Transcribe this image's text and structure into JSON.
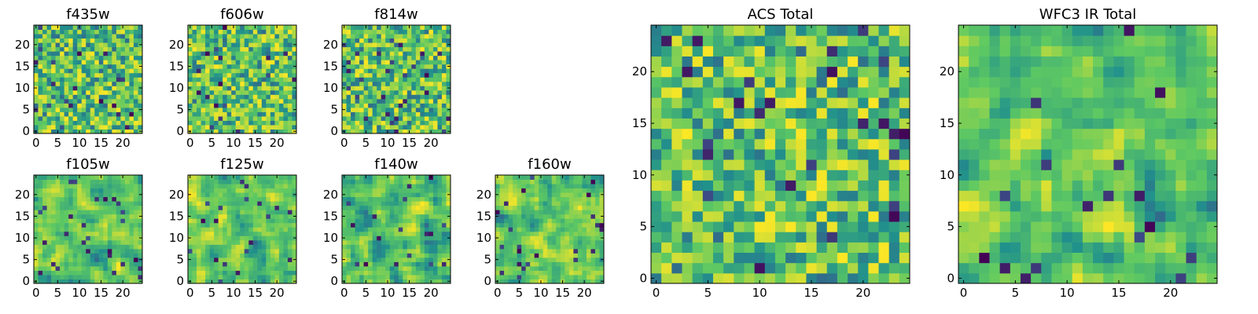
{
  "figure": {
    "background": "#ffffff",
    "colormap": "viridis",
    "colormap_stops": [
      "#440154",
      "#3b528b",
      "#21918c",
      "#5ec962",
      "#fde725"
    ]
  },
  "chart_data": [
    {
      "id": "f435w",
      "type": "heatmap",
      "title": "f435w",
      "grid_size": 25,
      "xticks": [
        0,
        5,
        10,
        15,
        20
      ],
      "yticks": [
        0,
        5,
        10,
        15,
        20
      ],
      "xlim": [
        -0.5,
        24.5
      ],
      "ylim": [
        -0.5,
        24.5
      ],
      "value_range": [
        0,
        1
      ],
      "texture": "noisy"
    },
    {
      "id": "f606w",
      "type": "heatmap",
      "title": "f606w",
      "grid_size": 25,
      "xticks": [
        0,
        5,
        10,
        15,
        20
      ],
      "yticks": [
        0,
        5,
        10,
        15,
        20
      ],
      "xlim": [
        -0.5,
        24.5
      ],
      "ylim": [
        -0.5,
        24.5
      ],
      "value_range": [
        0,
        1
      ],
      "texture": "noisy"
    },
    {
      "id": "f814w",
      "type": "heatmap",
      "title": "f814w",
      "grid_size": 25,
      "xticks": [
        0,
        5,
        10,
        15,
        20
      ],
      "yticks": [
        0,
        5,
        10,
        15,
        20
      ],
      "xlim": [
        -0.5,
        24.5
      ],
      "ylim": [
        -0.5,
        24.5
      ],
      "value_range": [
        0,
        1
      ],
      "texture": "noisy"
    },
    {
      "id": "f105w",
      "type": "heatmap",
      "title": "f105w",
      "grid_size": 25,
      "xticks": [
        0,
        5,
        10,
        15,
        20
      ],
      "yticks": [
        0,
        5,
        10,
        15,
        20
      ],
      "xlim": [
        -0.5,
        24.5
      ],
      "ylim": [
        -0.5,
        24.5
      ],
      "value_range": [
        0,
        1
      ],
      "texture": "smooth"
    },
    {
      "id": "f125w",
      "type": "heatmap",
      "title": "f125w",
      "grid_size": 25,
      "xticks": [
        0,
        5,
        10,
        15,
        20
      ],
      "yticks": [
        0,
        5,
        10,
        15,
        20
      ],
      "xlim": [
        -0.5,
        24.5
      ],
      "ylim": [
        -0.5,
        24.5
      ],
      "value_range": [
        0,
        1
      ],
      "texture": "smooth"
    },
    {
      "id": "f140w",
      "type": "heatmap",
      "title": "f140w",
      "grid_size": 25,
      "xticks": [
        0,
        5,
        10,
        15,
        20
      ],
      "yticks": [
        0,
        5,
        10,
        15,
        20
      ],
      "xlim": [
        -0.5,
        24.5
      ],
      "ylim": [
        -0.5,
        24.5
      ],
      "value_range": [
        0,
        1
      ],
      "texture": "smooth"
    },
    {
      "id": "f160w",
      "type": "heatmap",
      "title": "f160w",
      "grid_size": 25,
      "xticks": [
        0,
        5,
        10,
        15,
        20
      ],
      "yticks": [
        0,
        5,
        10,
        15,
        20
      ],
      "xlim": [
        -0.5,
        24.5
      ],
      "ylim": [
        -0.5,
        24.5
      ],
      "value_range": [
        0,
        1
      ],
      "texture": "smooth"
    },
    {
      "id": "acs-total",
      "type": "heatmap",
      "title": "ACS Total",
      "grid_size": 25,
      "xticks": [
        0,
        5,
        10,
        15,
        20
      ],
      "yticks": [
        0,
        5,
        10,
        15,
        20
      ],
      "xlim": [
        -0.5,
        24.5
      ],
      "ylim": [
        -0.5,
        24.5
      ],
      "value_range": [
        0,
        1
      ],
      "texture": "noisy"
    },
    {
      "id": "wfc3-ir-total",
      "type": "heatmap",
      "title": "WFC3 IR Total",
      "grid_size": 25,
      "xticks": [
        0,
        5,
        10,
        15,
        20
      ],
      "yticks": [
        0,
        5,
        10,
        15,
        20
      ],
      "xlim": [
        -0.5,
        24.5
      ],
      "ylim": [
        -0.5,
        24.5
      ],
      "value_range": [
        0,
        1
      ],
      "texture": "smooth"
    }
  ]
}
